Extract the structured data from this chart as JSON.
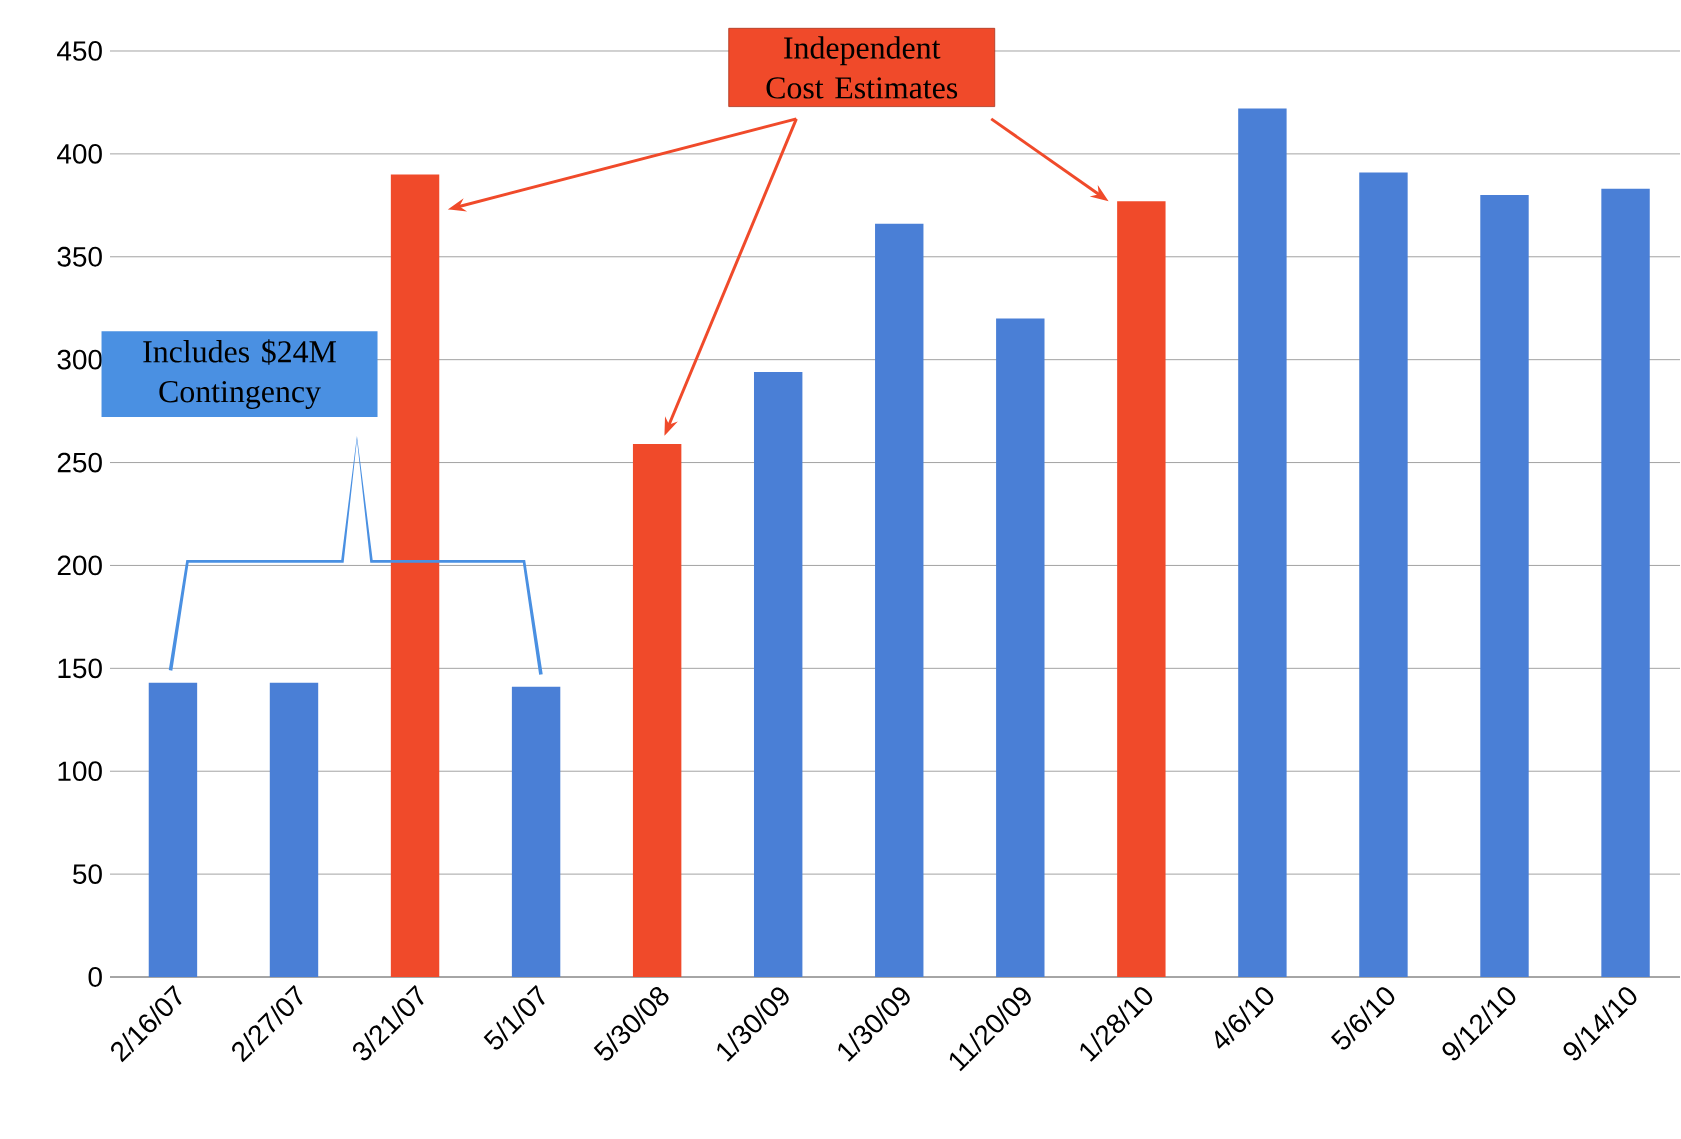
{
  "chart_data": {
    "type": "bar",
    "categories": [
      "2/16/07",
      "2/27/07",
      "3/21/07",
      "5/1/07",
      "5/30/08",
      "1/30/09",
      "1/30/09",
      "11/20/09",
      "1/28/10",
      "4/6/10",
      "5/6/10",
      "9/12/10",
      "9/14/10"
    ],
    "values": [
      143,
      143,
      390,
      141,
      259,
      294,
      366,
      320,
      377,
      422,
      391,
      380,
      383
    ],
    "colors": [
      "#4a7fd6",
      "#4a7fd6",
      "#f04a2a",
      "#4a7fd6",
      "#f04a2a",
      "#4a7fd6",
      "#4a7fd6",
      "#4a7fd6",
      "#f04a2a",
      "#4a7fd6",
      "#4a7fd6",
      "#4a7fd6",
      "#4a7fd6"
    ],
    "ylim": [
      0,
      450
    ],
    "yticks": [
      0,
      50,
      100,
      150,
      200,
      250,
      300,
      350,
      400,
      450
    ],
    "grid": "y",
    "annotations": [
      "Independent Cost Estimates",
      "Includes $24M Contingency"
    ]
  }
}
